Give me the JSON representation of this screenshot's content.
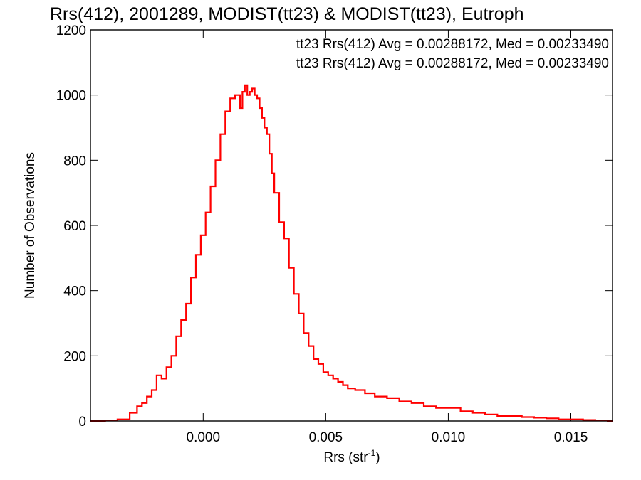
{
  "chart_data": {
    "type": "histogram",
    "title": "Rrs(412), 2001289, MODIST(tt23) & MODIST(tt23), Eutroph",
    "xlabel": "Rrs (str",
    "xlabel_superscript": "-1",
    "xlabel_suffix": ")",
    "ylabel": "Number of Observations",
    "xlim": [
      -0.0046,
      0.0167
    ],
    "ylim": [
      0,
      1200
    ],
    "xticks": [
      0.0,
      0.005,
      0.01,
      0.015
    ],
    "xtick_labels": [
      "0.000",
      "0.005",
      "0.010",
      "0.015"
    ],
    "yticks": [
      0,
      200,
      400,
      600,
      800,
      1000,
      1200
    ],
    "ytick_labels": [
      "0",
      "200",
      "400",
      "600",
      "800",
      "1000",
      "1200"
    ],
    "grid": false,
    "legend_position": "top-right",
    "annotations": [
      {
        "text": "tt23 Rrs(412) Avg = 0.00288172, Med = 0.00233490",
        "color": "#000000"
      },
      {
        "text": "tt23 Rrs(412) Avg = 0.00288172, Med = 0.00233490",
        "color": "#ff0000"
      }
    ],
    "series": [
      {
        "color": "#ff0000",
        "x": [
          -0.0046,
          -0.004,
          -0.0035,
          -0.003,
          -0.0027,
          -0.0025,
          -0.0023,
          -0.0021,
          -0.0019,
          -0.0017,
          -0.0015,
          -0.0013,
          -0.0011,
          -0.0009,
          -0.0007,
          -0.0005,
          -0.0003,
          -0.0001,
          0.0001,
          0.0003,
          0.0005,
          0.0007,
          0.0009,
          0.0011,
          0.0013,
          0.0015,
          0.0016,
          0.0017,
          0.0018,
          0.0019,
          0.002,
          0.0021,
          0.0022,
          0.0023,
          0.0024,
          0.0025,
          0.0026,
          0.0027,
          0.0028,
          0.0029,
          0.0031,
          0.0033,
          0.0035,
          0.0037,
          0.0039,
          0.0041,
          0.0043,
          0.0045,
          0.0047,
          0.0049,
          0.0051,
          0.0053,
          0.0055,
          0.0057,
          0.0059,
          0.0062,
          0.0066,
          0.007,
          0.0075,
          0.008,
          0.0085,
          0.009,
          0.0095,
          0.01,
          0.0105,
          0.011,
          0.0115,
          0.012,
          0.0125,
          0.013,
          0.0135,
          0.014,
          0.0145,
          0.015,
          0.0155,
          0.016,
          0.0165
        ],
        "y": [
          0,
          2,
          5,
          25,
          45,
          55,
          75,
          95,
          140,
          130,
          165,
          200,
          260,
          310,
          360,
          440,
          510,
          570,
          640,
          720,
          800,
          880,
          950,
          990,
          1000,
          960,
          1010,
          1030,
          1000,
          1010,
          1020,
          1000,
          990,
          960,
          930,
          900,
          880,
          820,
          760,
          700,
          610,
          560,
          470,
          390,
          330,
          270,
          230,
          190,
          175,
          150,
          140,
          130,
          120,
          110,
          100,
          95,
          85,
          75,
          70,
          60,
          55,
          45,
          40,
          40,
          30,
          25,
          20,
          15,
          15,
          12,
          10,
          8,
          5,
          5,
          3,
          2,
          0
        ]
      }
    ]
  }
}
